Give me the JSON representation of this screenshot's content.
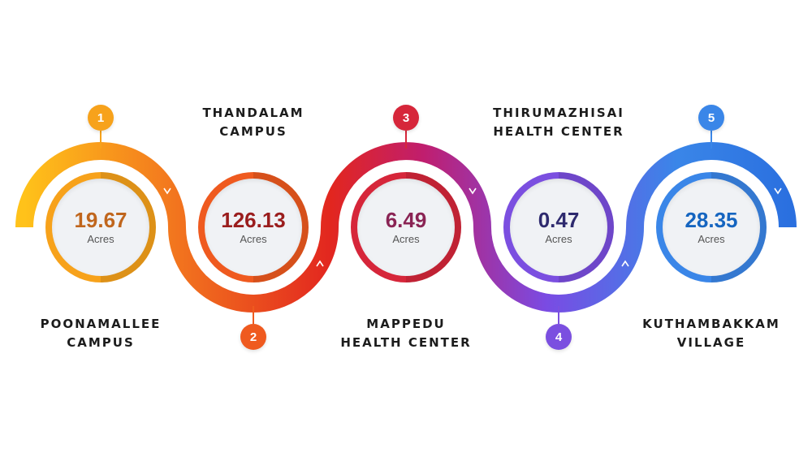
{
  "items": [
    {
      "number": "1",
      "label": "POONAMALLEE\nCAMPUS",
      "value": "19.67",
      "unit": "Acres",
      "color": "#f7a21b",
      "value_color": "#c0661d"
    },
    {
      "number": "2",
      "label": "THANDALAM\nCAMPUS",
      "value": "126.13",
      "unit": "Acres",
      "color": "#ef5a1f",
      "value_color": "#9a1d1d"
    },
    {
      "number": "3",
      "label": "MAPPEDU\nHEALTH CENTER",
      "value": "6.49",
      "unit": "Acres",
      "color": "#d6263a",
      "value_color": "#8a2454"
    },
    {
      "number": "4",
      "label": "THIRUMAZHISAI\nHEALTH CENTER",
      "value": "0.47",
      "unit": "Acres",
      "color": "#7b4fe0",
      "value_color": "#2e2a6e"
    },
    {
      "number": "5",
      "label": "KUTHAMBAKKAM\nVILLAGE",
      "value": "28.35",
      "unit": "Acres",
      "color": "#3a86e8",
      "value_color": "#1565c0"
    }
  ],
  "colors": {
    "gradient": [
      "#ffc21a",
      "#f2741e",
      "#e2261f",
      "#c01e6e",
      "#7a4be3",
      "#3a86e8",
      "#2a6fdf"
    ]
  }
}
